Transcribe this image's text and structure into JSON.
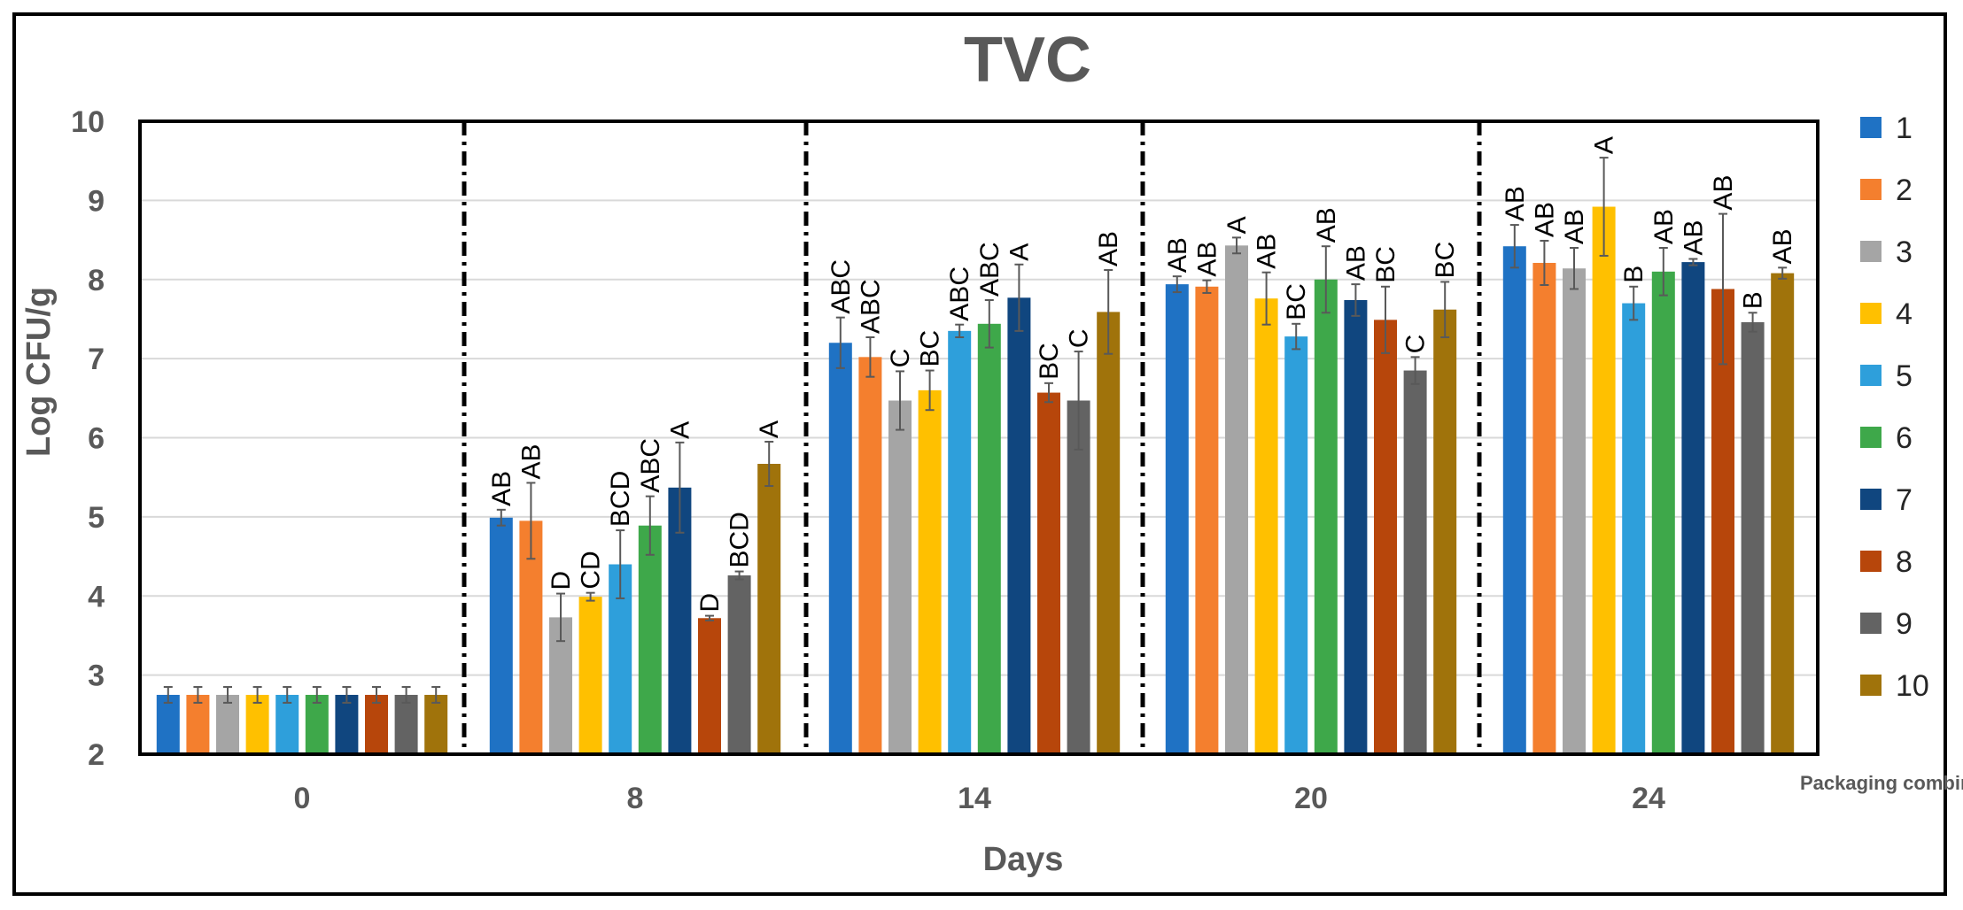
{
  "chart_data": {
    "type": "bar",
    "title": "TVC",
    "ylabel": "Log CFU/g",
    "xlabel": "Days",
    "legend_title": "Packaging combinations",
    "ylim": [
      2,
      10
    ],
    "yticks": [
      "2",
      "3",
      "4",
      "5",
      "6",
      "7",
      "8",
      "9",
      "10"
    ],
    "categories": [
      "0",
      "8",
      "14",
      "20",
      "24"
    ],
    "series": [
      {
        "name": "1",
        "color": "#1F72C4",
        "values": [
          2.75,
          4.99,
          7.2,
          7.94,
          8.42
        ],
        "errors": [
          0.1,
          0.1,
          0.32,
          0.1,
          0.27
        ],
        "letters": [
          "",
          "AB",
          "ABC",
          "AB",
          "AB"
        ]
      },
      {
        "name": "2",
        "color": "#F47F2E",
        "values": [
          2.75,
          4.95,
          7.02,
          7.91,
          8.21
        ],
        "errors": [
          0.1,
          0.48,
          0.25,
          0.08,
          0.28
        ],
        "letters": [
          "",
          "AB",
          "ABC",
          "AB",
          "AB"
        ]
      },
      {
        "name": "3",
        "color": "#A5A5A5",
        "values": [
          2.75,
          3.73,
          6.47,
          8.43,
          8.14
        ],
        "errors": [
          0.1,
          0.3,
          0.37,
          0.1,
          0.26
        ],
        "letters": [
          "",
          "D",
          "C",
          "A",
          "AB"
        ]
      },
      {
        "name": "4",
        "color": "#FFC000",
        "values": [
          2.75,
          3.99,
          6.6,
          7.76,
          8.92
        ],
        "errors": [
          0.1,
          0.05,
          0.25,
          0.33,
          0.62
        ],
        "letters": [
          "",
          "CD",
          "BC",
          "AB",
          "A"
        ]
      },
      {
        "name": "5",
        "color": "#2E9FDB",
        "values": [
          2.75,
          4.4,
          7.35,
          7.28,
          7.7
        ],
        "errors": [
          0.1,
          0.43,
          0.08,
          0.16,
          0.21
        ],
        "letters": [
          "",
          "BCD",
          "ABC",
          "BC",
          "B"
        ]
      },
      {
        "name": "6",
        "color": "#3EA84A",
        "values": [
          2.75,
          4.89,
          7.44,
          8.0,
          8.1
        ],
        "errors": [
          0.1,
          0.37,
          0.3,
          0.42,
          0.3
        ],
        "letters": [
          "",
          "ABC",
          "ABC",
          "AB",
          "AB"
        ]
      },
      {
        "name": "7",
        "color": "#10467F",
        "values": [
          2.75,
          5.37,
          7.77,
          7.74,
          8.22
        ],
        "errors": [
          0.1,
          0.57,
          0.42,
          0.2,
          0.04
        ],
        "letters": [
          "",
          "A",
          "A",
          "AB",
          "AB"
        ]
      },
      {
        "name": "8",
        "color": "#B7460B",
        "values": [
          2.75,
          3.72,
          6.57,
          7.49,
          7.88
        ],
        "errors": [
          0.1,
          0.03,
          0.12,
          0.42,
          0.95
        ],
        "letters": [
          "",
          "D",
          "BC",
          "BC",
          "AB"
        ]
      },
      {
        "name": "9",
        "color": "#636363",
        "values": [
          2.75,
          4.26,
          6.47,
          6.85,
          7.46
        ],
        "errors": [
          0.1,
          0.05,
          0.62,
          0.17,
          0.12
        ],
        "letters": [
          "",
          "BCD",
          "C",
          "C",
          "B"
        ]
      },
      {
        "name": "10",
        "color": "#A0730B",
        "values": [
          2.75,
          5.67,
          7.59,
          7.62,
          8.08
        ],
        "errors": [
          0.1,
          0.28,
          0.53,
          0.35,
          0.07
        ],
        "letters": [
          "",
          "A",
          "AB",
          "BC",
          "AB"
        ]
      }
    ]
  }
}
